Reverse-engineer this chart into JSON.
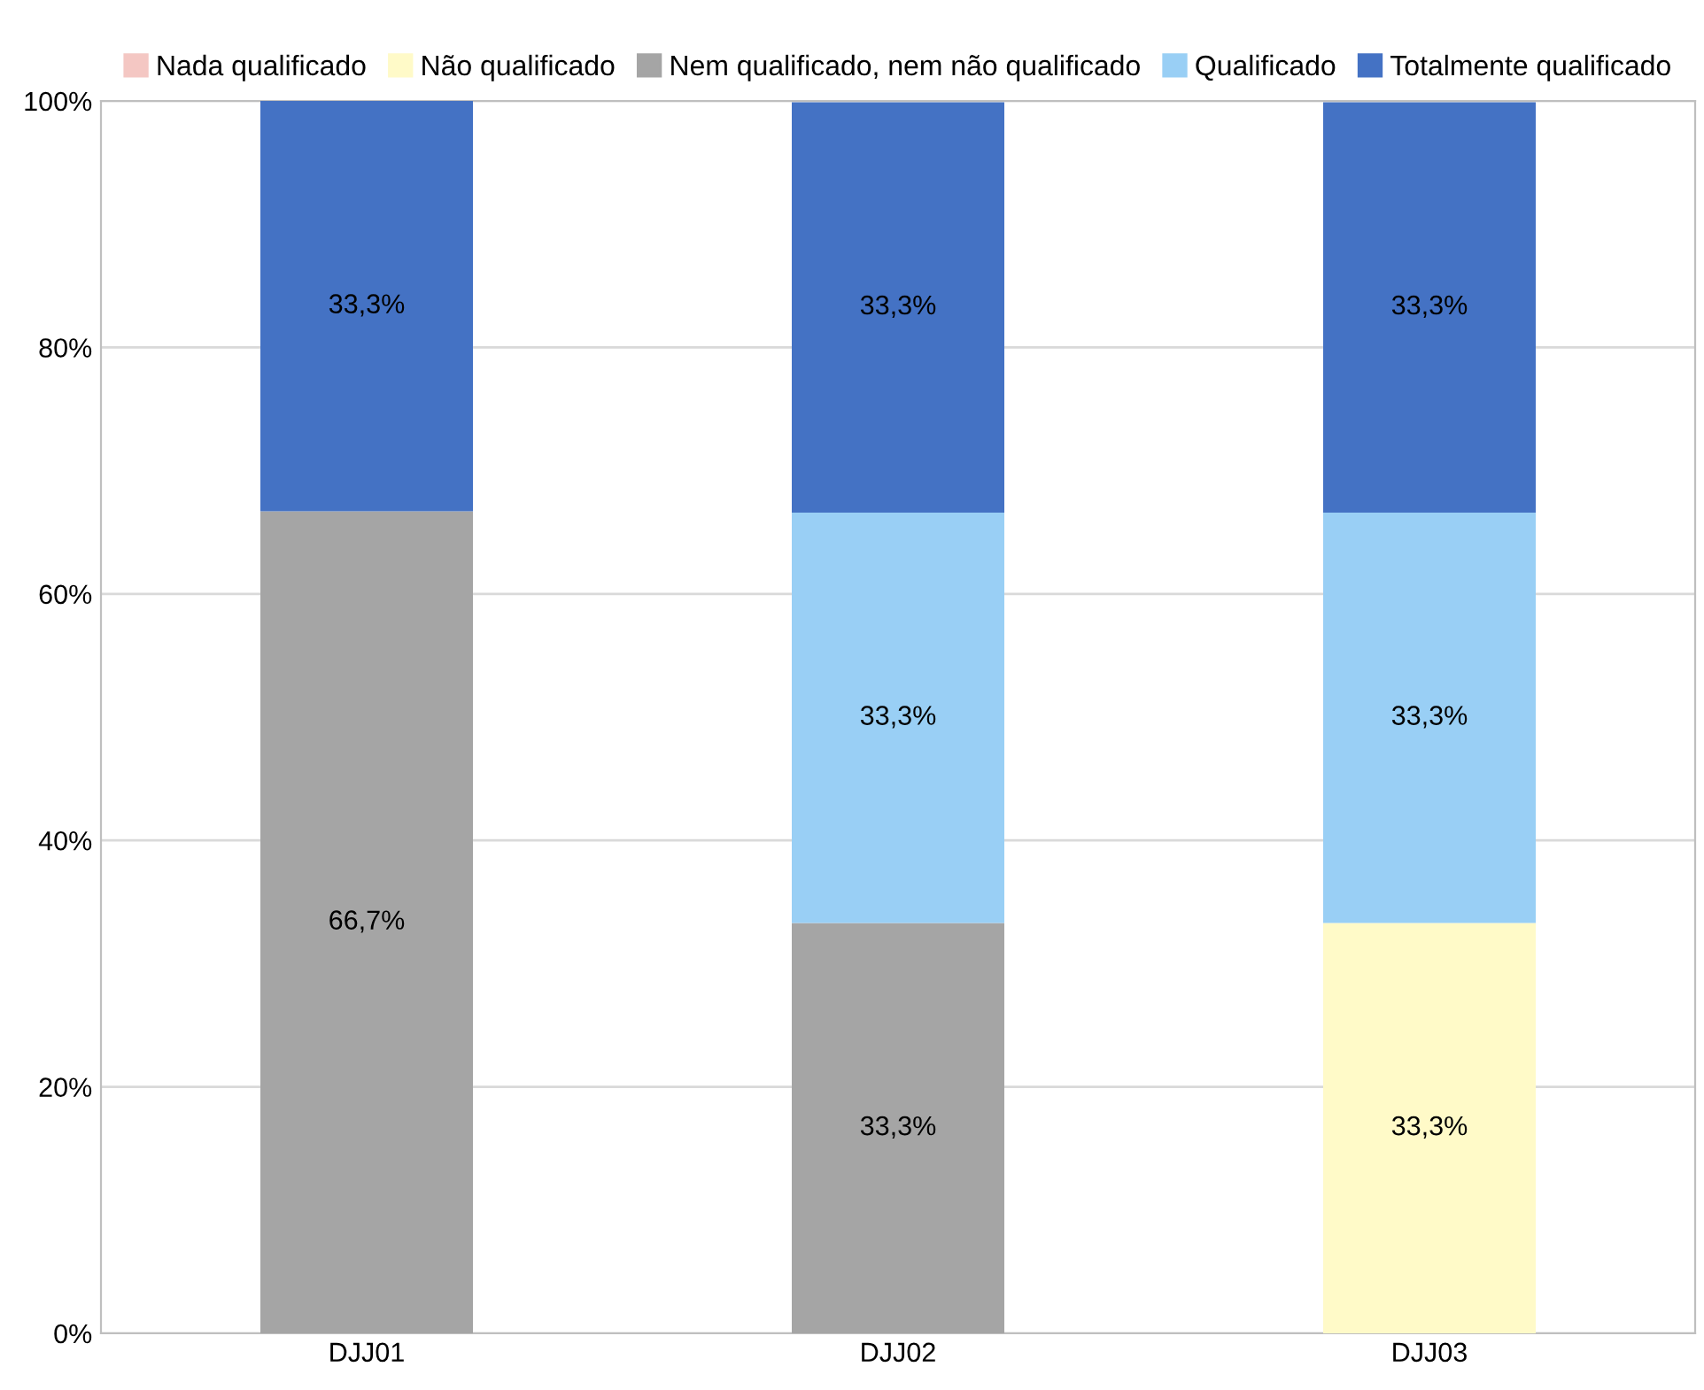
{
  "chart_data": {
    "type": "bar",
    "stacked": true,
    "categories": [
      "DJJ01",
      "DJJ02",
      "DJJ03"
    ],
    "series": [
      {
        "name": "Nada qualificado",
        "color": "#f4c7c3",
        "values": [
          0,
          0,
          0
        ],
        "value_labels": [
          null,
          null,
          null
        ]
      },
      {
        "name": "Não qualificado",
        "color": "#fffac8",
        "values": [
          0,
          0,
          33.3
        ],
        "value_labels": [
          null,
          null,
          "33,3%"
        ]
      },
      {
        "name": "Nem qualificado, nem não qualificado",
        "color": "#a5a5a5",
        "values": [
          66.7,
          33.3,
          0
        ],
        "value_labels": [
          "66,7%",
          "33,3%",
          null
        ]
      },
      {
        "name": "Qualificado",
        "color": "#99cff5",
        "values": [
          0,
          33.3,
          33.3
        ],
        "value_labels": [
          null,
          "33,3%",
          "33,3%"
        ]
      },
      {
        "name": "Totalmente qualificado",
        "color": "#4472c4",
        "values": [
          33.3,
          33.3,
          33.3
        ],
        "value_labels": [
          "33,3%",
          "33,3%",
          "33,3%"
        ]
      }
    ],
    "ylim": [
      0,
      100
    ],
    "yticks": [
      {
        "value": 0,
        "label": "0%"
      },
      {
        "value": 20,
        "label": "20%"
      },
      {
        "value": 40,
        "label": "40%"
      },
      {
        "value": 60,
        "label": "60%"
      },
      {
        "value": 80,
        "label": "80%"
      },
      {
        "value": 100,
        "label": "100%"
      }
    ],
    "grid": "y",
    "legend": "top"
  }
}
